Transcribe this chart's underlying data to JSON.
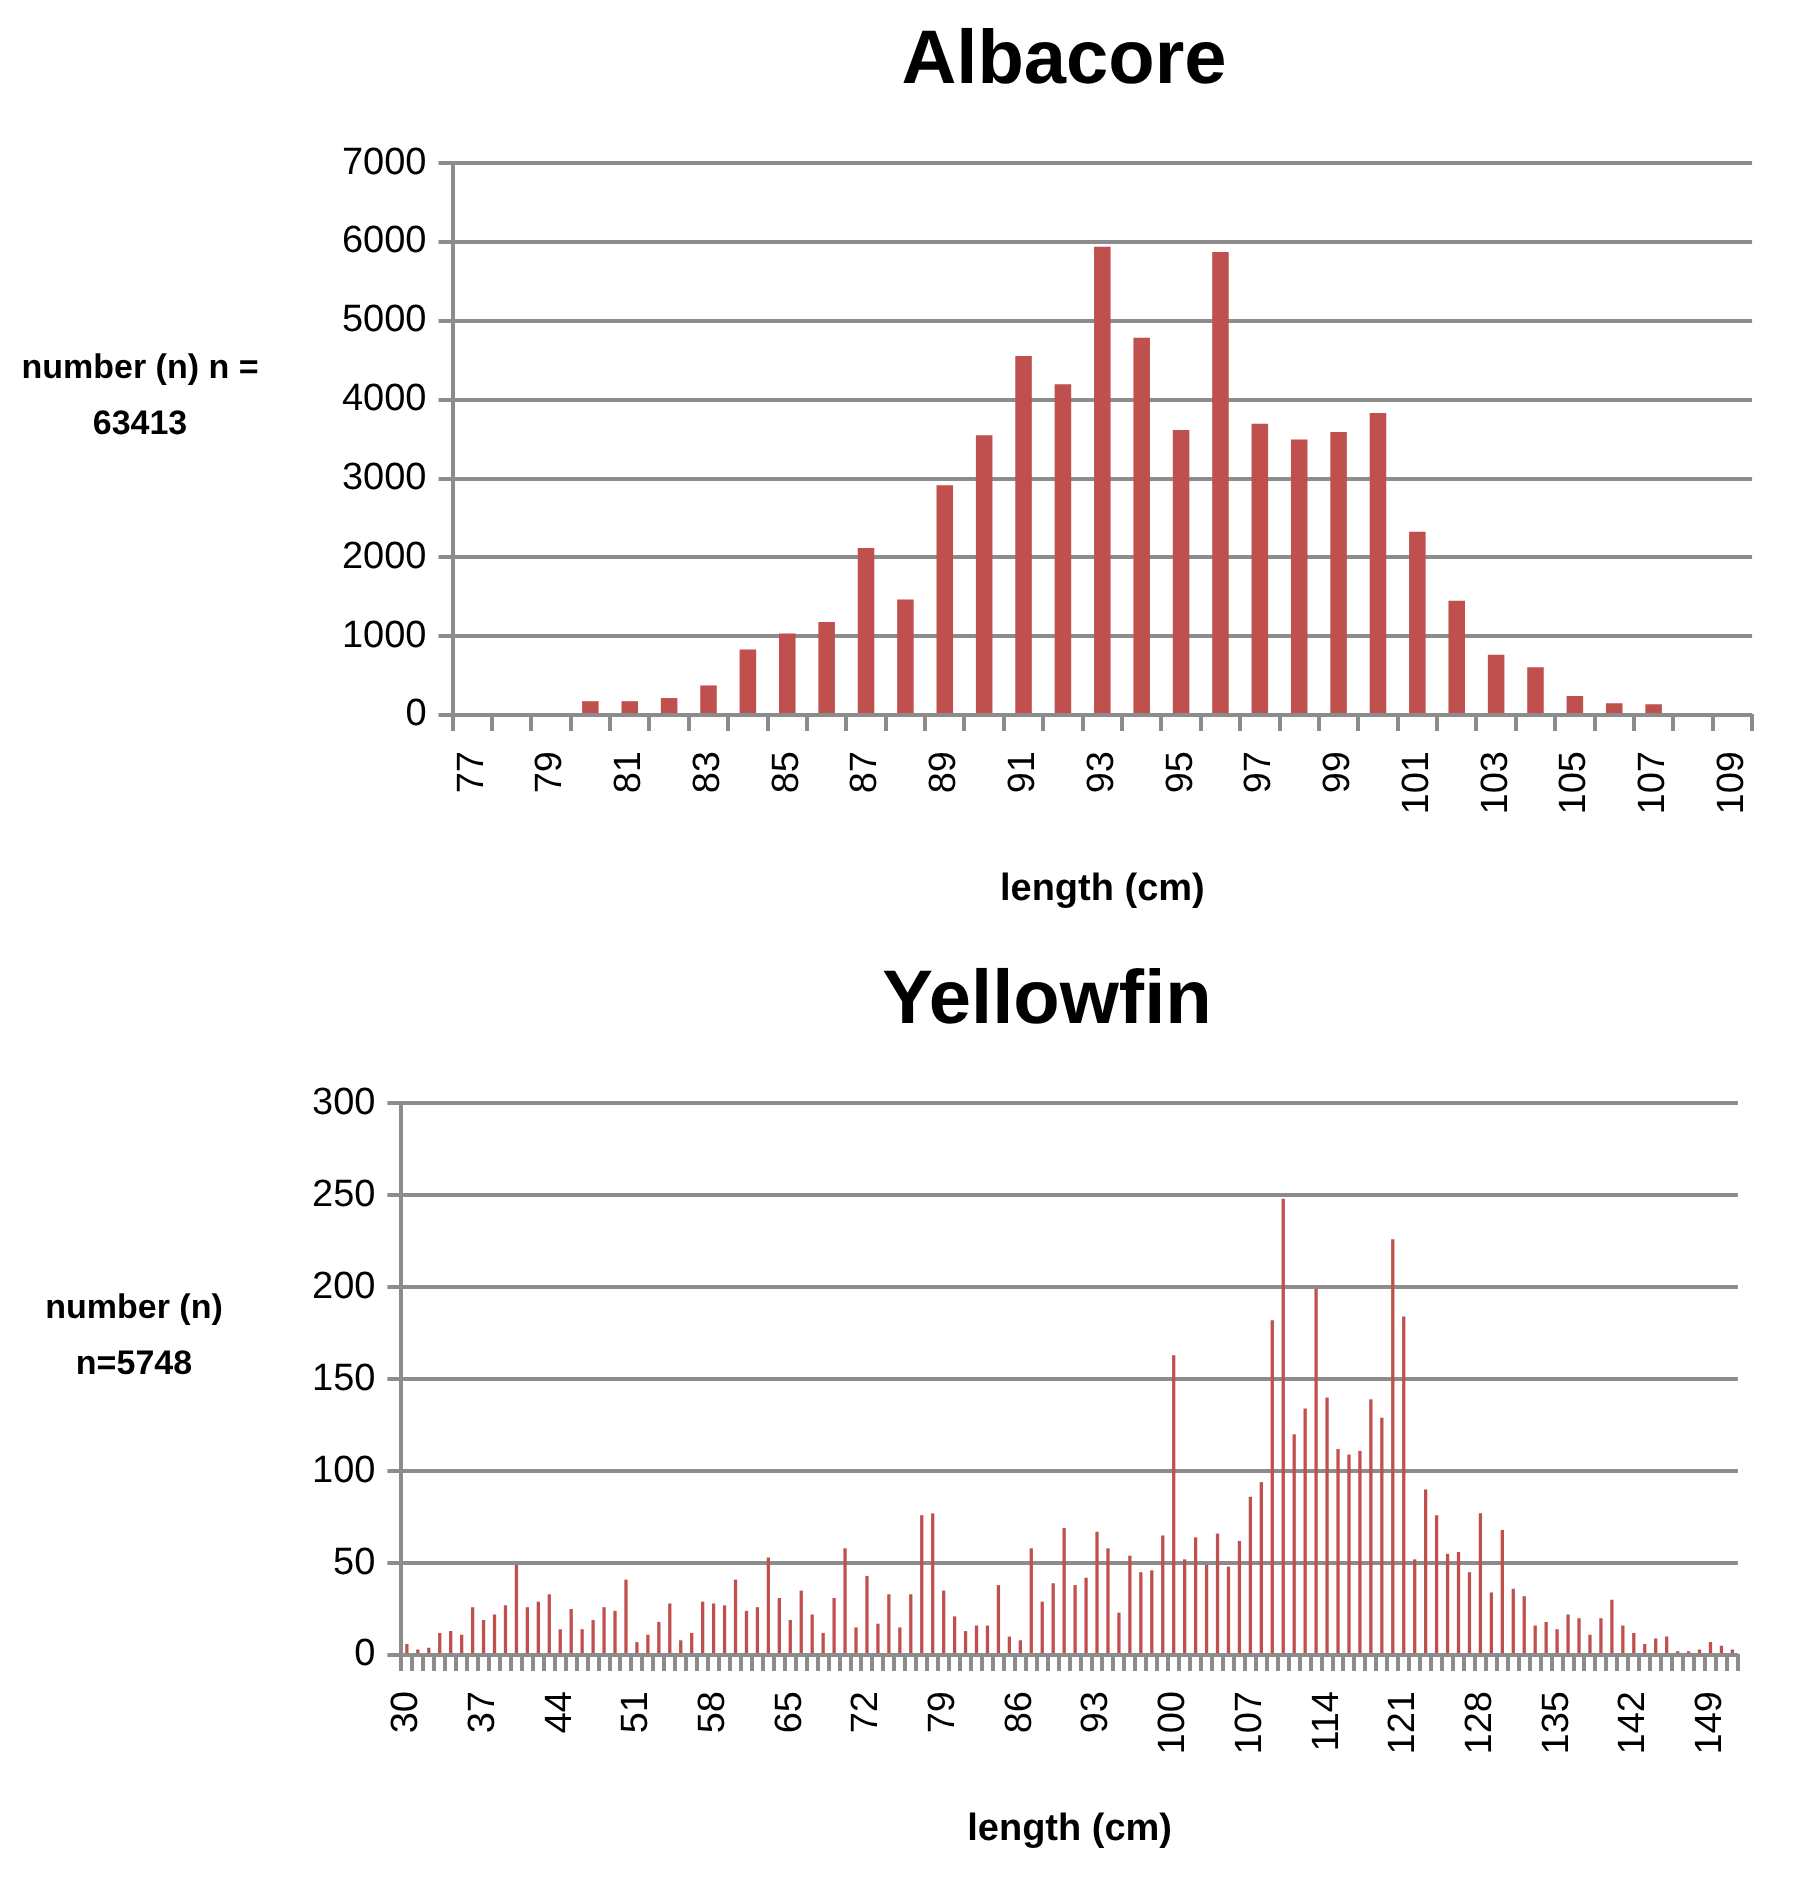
{
  "chart_data": [
    {
      "type": "bar",
      "title": "Albacore",
      "xlabel": "length (cm)",
      "ylabel": "number (n) n = 63413",
      "color": "#c0504d",
      "grid": "y",
      "ylim": [
        0,
        7000
      ],
      "yticks": [
        0,
        1000,
        2000,
        3000,
        4000,
        5000,
        6000,
        7000
      ],
      "categories": [
        "77",
        null,
        "79",
        null,
        "81",
        null,
        "83",
        null,
        "85",
        null,
        "87",
        null,
        "89",
        null,
        "91",
        null,
        "93",
        null,
        "95",
        null,
        "97",
        null,
        "99",
        null,
        "101",
        null,
        "103",
        null,
        "105",
        null,
        "107",
        null,
        "109"
      ],
      "values": [
        0,
        0,
        0,
        175,
        175,
        215,
        375,
        830,
        1035,
        1180,
        2120,
        1465,
        2915,
        3550,
        4555,
        4195,
        5940,
        4785,
        3615,
        5875,
        3695,
        3495,
        3590,
        3830,
        2325,
        1450,
        765,
        605,
        240,
        150,
        135,
        0,
        0
      ]
    },
    {
      "type": "bar",
      "title": "Yellowfin",
      "xlabel": "length (cm)",
      "ylabel": "number (n) n=5748",
      "color": "#c0504d",
      "grid": "y",
      "ylim": [
        0,
        300
      ],
      "yticks": [
        0,
        50,
        100,
        150,
        200,
        250,
        300
      ],
      "categories": [
        "30",
        null,
        null,
        null,
        null,
        null,
        null,
        "37",
        null,
        null,
        null,
        null,
        null,
        null,
        "44",
        null,
        null,
        null,
        null,
        null,
        null,
        "51",
        null,
        null,
        null,
        null,
        null,
        null,
        "58",
        null,
        null,
        null,
        null,
        null,
        null,
        "65",
        null,
        null,
        null,
        null,
        null,
        null,
        "72",
        null,
        null,
        null,
        null,
        null,
        null,
        "79",
        null,
        null,
        null,
        null,
        null,
        null,
        "86",
        null,
        null,
        null,
        null,
        null,
        null,
        "93",
        null,
        null,
        null,
        null,
        null,
        null,
        "100",
        null,
        null,
        null,
        null,
        null,
        null,
        "107",
        null,
        null,
        null,
        null,
        null,
        null,
        "114",
        null,
        null,
        null,
        null,
        null,
        null,
        "121",
        null,
        null,
        null,
        null,
        null,
        null,
        "128",
        null,
        null,
        null,
        null,
        null,
        null,
        "135",
        null,
        null,
        null,
        null,
        null,
        null,
        "142",
        null,
        null,
        null,
        null,
        null,
        null,
        "149",
        null,
        null
      ],
      "values": [
        6,
        3,
        4,
        12,
        13,
        11,
        26,
        19,
        22,
        27,
        49,
        26,
        29,
        33,
        14,
        25,
        14,
        19,
        26,
        24,
        41,
        7,
        11,
        18,
        28,
        8,
        12,
        29,
        28,
        27,
        41,
        24,
        26,
        53,
        31,
        19,
        35,
        22,
        12,
        31,
        58,
        15,
        43,
        17,
        33,
        15,
        33,
        76,
        77,
        35,
        21,
        13,
        16,
        16,
        38,
        10,
        8,
        58,
        29,
        39,
        69,
        38,
        42,
        67,
        58,
        23,
        54,
        45,
        46,
        65,
        163,
        52,
        64,
        49,
        66,
        48,
        62,
        86,
        94,
        182,
        248,
        120,
        134,
        199,
        140,
        112,
        109,
        111,
        139,
        129,
        226,
        184,
        52,
        90,
        76,
        55,
        56,
        45,
        77,
        34,
        68,
        36,
        32,
        16,
        18,
        14,
        22,
        20,
        11,
        20,
        30,
        16,
        12,
        6,
        9,
        10,
        2,
        2,
        3,
        7,
        5,
        3
      ]
    }
  ]
}
